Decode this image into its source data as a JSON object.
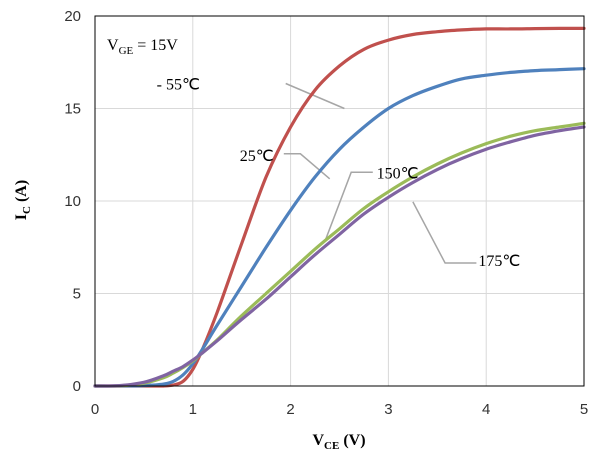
{
  "chart_data": {
    "type": "line",
    "title": "",
    "xlabel": {
      "main": "V",
      "sub": "CE",
      "unit": " (V)"
    },
    "ylabel": {
      "main": "I",
      "sub": "C",
      "unit": " (A)"
    },
    "xlim": [
      0,
      5
    ],
    "ylim": [
      0,
      20
    ],
    "xticks": [
      0,
      1,
      2,
      3,
      4,
      5
    ],
    "yticks": [
      0,
      5,
      10,
      15,
      20
    ],
    "grid": true,
    "legend": "none",
    "condition": {
      "main": "V",
      "sub": "GE",
      "rest": " = 15V"
    },
    "x": [
      0,
      0.25,
      0.5,
      0.7,
      0.8,
      0.9,
      1.0,
      1.1,
      1.25,
      1.5,
      1.75,
      2.0,
      2.25,
      2.5,
      2.75,
      3.0,
      3.25,
      3.5,
      3.75,
      4.0,
      4.25,
      4.5,
      4.75,
      5.0
    ],
    "series": [
      {
        "name": "- 55℃",
        "color": "#c0504d",
        "values": [
          0,
          0,
          0,
          0,
          0.05,
          0.25,
          0.9,
          2.0,
          4.0,
          7.7,
          11.3,
          14.0,
          16.0,
          17.3,
          18.2,
          18.7,
          19.0,
          19.15,
          19.25,
          19.3,
          19.3,
          19.32,
          19.33,
          19.33
        ]
      },
      {
        "name": "25℃",
        "color": "#4f81bd",
        "values": [
          0,
          0,
          0.02,
          0.1,
          0.25,
          0.6,
          1.2,
          2.0,
          3.3,
          5.4,
          7.5,
          9.5,
          11.3,
          12.8,
          14.0,
          15.0,
          15.7,
          16.2,
          16.6,
          16.8,
          16.95,
          17.05,
          17.1,
          17.15
        ]
      },
      {
        "name": "150℃",
        "color": "#9bbb59",
        "values": [
          0,
          0.01,
          0.15,
          0.45,
          0.7,
          1.0,
          1.35,
          1.8,
          2.5,
          3.8,
          5.0,
          6.2,
          7.4,
          8.5,
          9.6,
          10.5,
          11.3,
          12.0,
          12.6,
          13.1,
          13.5,
          13.8,
          14.0,
          14.2
        ]
      },
      {
        "name": "175℃",
        "color": "#8064a2",
        "values": [
          0,
          0.02,
          0.2,
          0.55,
          0.8,
          1.05,
          1.4,
          1.8,
          2.45,
          3.6,
          4.7,
          5.9,
          7.1,
          8.2,
          9.3,
          10.2,
          11.0,
          11.7,
          12.3,
          12.8,
          13.2,
          13.55,
          13.8,
          14.0
        ]
      }
    ],
    "annotations": [
      {
        "series": 0,
        "label": "- 55℃",
        "text_x": 0.63,
        "text_y": 16.35,
        "text_anchor": "start",
        "line": [
          [
            1.95,
            16.35
          ],
          [
            2.55,
            15.0
          ]
        ]
      },
      {
        "series": 1,
        "label": "25℃",
        "text_x": 1.48,
        "text_y": 12.5,
        "text_anchor": "start",
        "line": [
          [
            1.93,
            12.55
          ],
          [
            2.1,
            12.55
          ],
          [
            2.4,
            11.2
          ]
        ]
      },
      {
        "series": 2,
        "label": "150℃",
        "text_x": 2.88,
        "text_y": 11.55,
        "text_anchor": "start",
        "line": [
          [
            2.62,
            11.55
          ],
          [
            2.84,
            11.55
          ],
          [
            2.62,
            11.55
          ],
          [
            2.35,
            7.8
          ]
        ]
      },
      {
        "series": 3,
        "label": "175℃",
        "text_x": 3.92,
        "text_y": 6.8,
        "text_anchor": "start",
        "line": [
          [
            3.9,
            6.65
          ],
          [
            3.58,
            6.65
          ],
          [
            3.25,
            9.95
          ]
        ]
      }
    ]
  }
}
